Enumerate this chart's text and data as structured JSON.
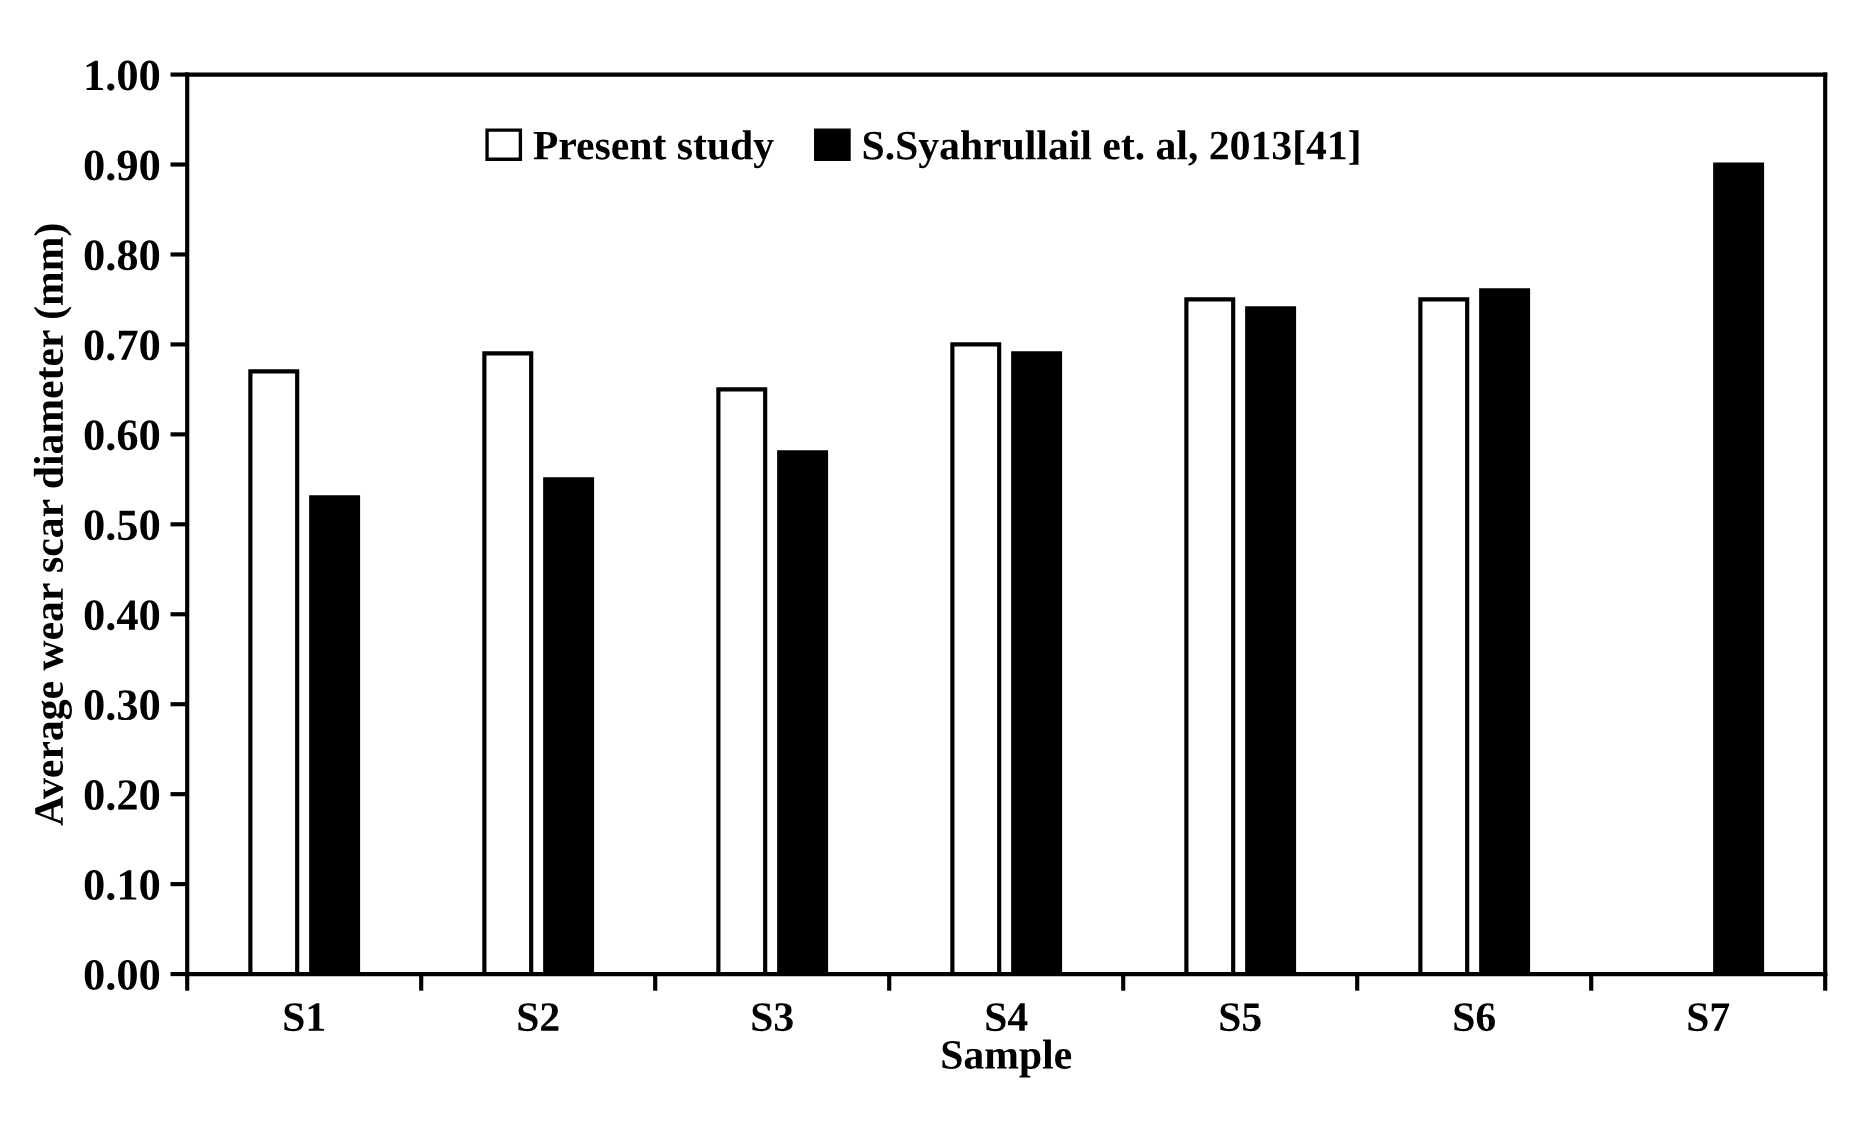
{
  "chart_data": {
    "type": "bar",
    "xlabel": "Sample",
    "ylabel": "Average wear scar diameter (mm)",
    "categories": [
      "S1",
      "S2",
      "S3",
      "S4",
      "S5",
      "S6",
      "S7"
    ],
    "series": [
      {
        "name": "Present study",
        "color": "#ffffff",
        "values": [
          0.67,
          0.69,
          0.65,
          0.7,
          0.75,
          0.75,
          null
        ]
      },
      {
        "name": "S.Syahrullail et. al, 2013[41]",
        "color": "#000000",
        "values": [
          0.53,
          0.55,
          0.58,
          0.69,
          0.74,
          0.76,
          0.9
        ]
      }
    ],
    "ylim": [
      0,
      1
    ],
    "yticks": [
      {
        "value": 0,
        "label": "0.00"
      },
      {
        "value": 0.1,
        "label": "0.10"
      },
      {
        "value": 0.2,
        "label": "0.20"
      },
      {
        "value": 0.3,
        "label": "0.30"
      },
      {
        "value": 0.4,
        "label": "0.40"
      },
      {
        "value": 0.5,
        "label": "0.50"
      },
      {
        "value": 0.6,
        "label": "0.60"
      },
      {
        "value": 0.7,
        "label": "0.70"
      },
      {
        "value": 0.8,
        "label": "0.80"
      },
      {
        "value": 0.9,
        "label": "0.90"
      },
      {
        "value": 1,
        "label": "1.00"
      }
    ],
    "grid": false,
    "legend": "top"
  }
}
